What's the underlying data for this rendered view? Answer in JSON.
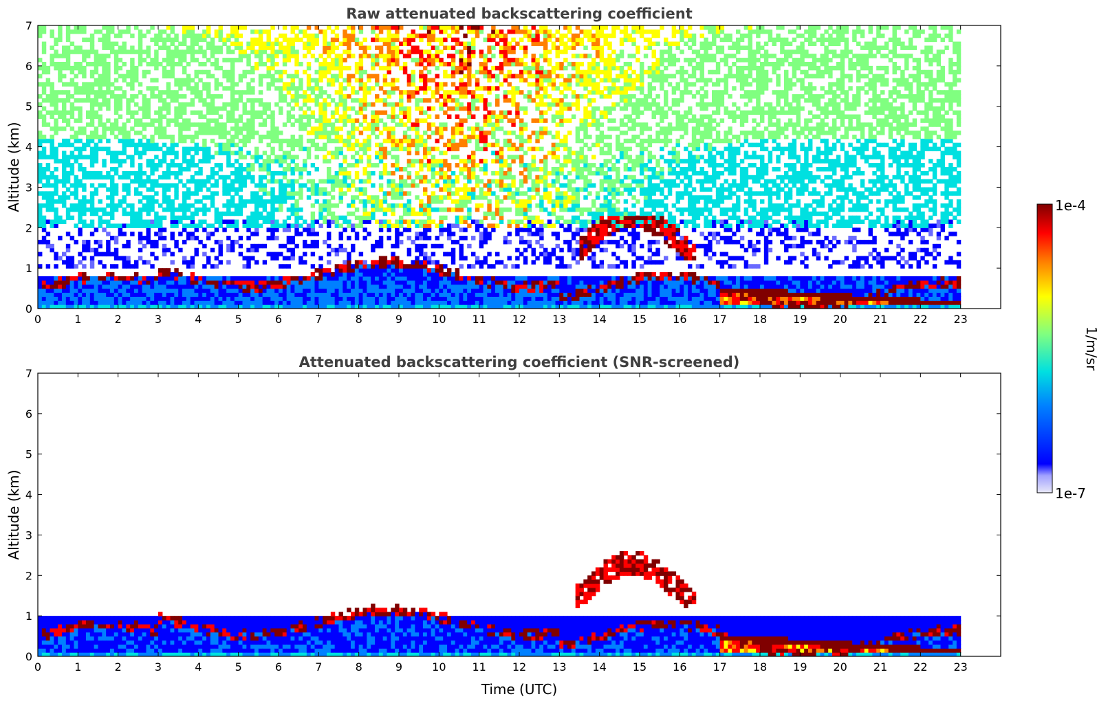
{
  "chart_data": [
    {
      "type": "heatmap",
      "title": "Raw attenuated backscattering coefficient",
      "xlabel": "",
      "ylabel": "Altitude (km)",
      "xlim": [
        0,
        24
      ],
      "ylim": [
        0,
        7
      ],
      "x_ticks": [
        "0",
        "1",
        "2",
        "3",
        "4",
        "5",
        "6",
        "7",
        "8",
        "9",
        "10",
        "11",
        "12",
        "13",
        "14",
        "15",
        "16",
        "17",
        "18",
        "19",
        "20",
        "21",
        "22",
        "23"
      ],
      "y_ticks": [
        "0",
        "1",
        "2",
        "3",
        "4",
        "5",
        "6",
        "7"
      ],
      "data_extent_hours": 23,
      "features": [
        {
          "name": "boundary layer",
          "altitude_km": [
            0,
            0.8
          ],
          "level": 0.3
        },
        {
          "name": "elevated layer",
          "time_h": [
            13.5,
            16.4
          ],
          "altitude_km": [
            1.2,
            2.3
          ],
          "level": 0.95
        },
        {
          "name": "low dense layer",
          "time_h": [
            17,
            23
          ],
          "altitude_km": [
            0.1,
            0.5
          ],
          "level": 1.0
        },
        {
          "name": "high-altitude noise",
          "altitude_km": [
            2,
            7
          ],
          "level": 0.55
        }
      ]
    },
    {
      "type": "heatmap",
      "title": "Attenuated backscattering coefficient (SNR-screened)",
      "xlabel": "Time (UTC)",
      "ylabel": "Altitude (km)",
      "xlim": [
        0,
        24
      ],
      "ylim": [
        0,
        7
      ],
      "x_ticks": [
        "0",
        "1",
        "2",
        "3",
        "4",
        "5",
        "6",
        "7",
        "8",
        "9",
        "10",
        "11",
        "12",
        "13",
        "14",
        "15",
        "16",
        "17",
        "18",
        "19",
        "20",
        "21",
        "22",
        "23"
      ],
      "y_ticks": [
        "0",
        "1",
        "2",
        "3",
        "4",
        "5",
        "6",
        "7"
      ],
      "data_extent_hours": 23,
      "features": [
        {
          "name": "boundary layer",
          "altitude_km": [
            0,
            1.0
          ],
          "level": 0.25
        },
        {
          "name": "elevated layer",
          "time_h": [
            13.4,
            16.4
          ],
          "altitude_km": [
            1.2,
            2.9
          ],
          "level": 0.95
        },
        {
          "name": "low dense layer",
          "time_h": [
            17,
            23
          ],
          "altitude_km": [
            0.1,
            0.5
          ],
          "level": 0.9
        }
      ]
    }
  ],
  "colorbar": {
    "label": "1/m/sr",
    "max_label": "1e-4",
    "min_label": "1e-7",
    "scale": "log",
    "colormap": "jet",
    "colors": [
      "#e8e8f8",
      "#6a6aff",
      "#0000ff",
      "#0080ff",
      "#00e0e0",
      "#80ff80",
      "#ffff00",
      "#ff8000",
      "#ff0000",
      "#800000"
    ]
  }
}
